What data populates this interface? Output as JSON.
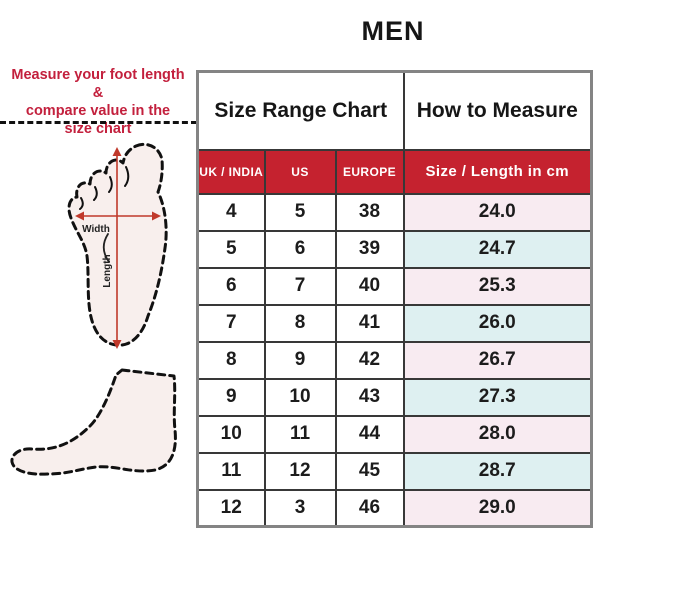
{
  "page": {
    "title": "MEN"
  },
  "instruction": {
    "lines": [
      "Measure your foot length &",
      "compare value in the",
      "size chart"
    ]
  },
  "diagram": {
    "width_label": "Width",
    "length_label": "Length"
  },
  "table": {
    "group_headers": [
      "Size Range Chart",
      "How to Measure"
    ],
    "columns": [
      "UK / INDIA",
      "US",
      "EUROPE",
      "Size / Length in cm"
    ],
    "rows": [
      [
        "4",
        "5",
        "38",
        "24.0"
      ],
      [
        "5",
        "6",
        "39",
        "24.7"
      ],
      [
        "6",
        "7",
        "40",
        "25.3"
      ],
      [
        "7",
        "8",
        "41",
        "26.0"
      ],
      [
        "8",
        "9",
        "42",
        "26.7"
      ],
      [
        "9",
        "10",
        "43",
        "27.3"
      ],
      [
        "10",
        "11",
        "44",
        "28.0"
      ],
      [
        "11",
        "12",
        "45",
        "28.7"
      ],
      [
        "12",
        "3",
        "46",
        "29.0"
      ]
    ]
  },
  "colors": {
    "header_red": "#c5222f",
    "text_red": "#c3203d",
    "arrow_red": "#c0392b",
    "row_pink": "#f8ebf1",
    "row_cyan": "#def0f1",
    "foot_fill": "#f8efed"
  }
}
